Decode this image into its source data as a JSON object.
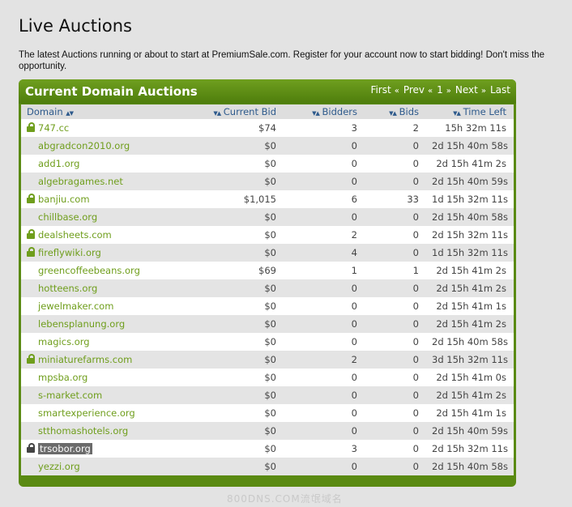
{
  "page": {
    "title": "Live Auctions",
    "intro": "The latest Auctions running or about to start at PremiumSale.com. Register for your account now to start bidding! Don't miss the opportunity."
  },
  "panel": {
    "title": "Current Domain Auctions",
    "pager": {
      "first": "First",
      "prev": "Prev",
      "page": "1",
      "next": "Next",
      "last": "Last",
      "left_sep": "«",
      "right_sep": "»"
    }
  },
  "table": {
    "headers": {
      "domain": "Domain",
      "current_bid": "Current Bid",
      "bidders": "Bidders",
      "bids": "Bids",
      "time_left": "Time Left"
    },
    "rows": [
      {
        "domain": "747.cc",
        "locked": true,
        "bid": "$74",
        "bidders": "3",
        "bids": "2",
        "time": "15h 32m 11s"
      },
      {
        "domain": "abgradcon2010.org",
        "locked": false,
        "bid": "$0",
        "bidders": "0",
        "bids": "0",
        "time": "2d 15h 40m 58s"
      },
      {
        "domain": "add1.org",
        "locked": false,
        "bid": "$0",
        "bidders": "0",
        "bids": "0",
        "time": "2d 15h 41m 2s"
      },
      {
        "domain": "algebragames.net",
        "locked": false,
        "bid": "$0",
        "bidders": "0",
        "bids": "0",
        "time": "2d 15h 40m 59s"
      },
      {
        "domain": "banjiu.com",
        "locked": true,
        "bid": "$1,015",
        "bidders": "6",
        "bids": "33",
        "time": "1d 15h 32m 11s"
      },
      {
        "domain": "chillbase.org",
        "locked": false,
        "bid": "$0",
        "bidders": "0",
        "bids": "0",
        "time": "2d 15h 40m 58s"
      },
      {
        "domain": "dealsheets.com",
        "locked": true,
        "bid": "$0",
        "bidders": "2",
        "bids": "0",
        "time": "2d 15h 32m 11s"
      },
      {
        "domain": "fireflywiki.org",
        "locked": true,
        "bid": "$0",
        "bidders": "4",
        "bids": "0",
        "time": "1d 15h 32m 11s"
      },
      {
        "domain": "greencoffeebeans.org",
        "locked": false,
        "bid": "$69",
        "bidders": "1",
        "bids": "1",
        "time": "2d 15h 41m 2s"
      },
      {
        "domain": "hotteens.org",
        "locked": false,
        "bid": "$0",
        "bidders": "0",
        "bids": "0",
        "time": "2d 15h 41m 2s"
      },
      {
        "domain": "jewelmaker.com",
        "locked": false,
        "bid": "$0",
        "bidders": "0",
        "bids": "0",
        "time": "2d 15h 41m 1s"
      },
      {
        "domain": "lebensplanung.org",
        "locked": false,
        "bid": "$0",
        "bidders": "0",
        "bids": "0",
        "time": "2d 15h 41m 2s"
      },
      {
        "domain": "magics.org",
        "locked": false,
        "bid": "$0",
        "bidders": "0",
        "bids": "0",
        "time": "2d 15h 40m 58s"
      },
      {
        "domain": "miniaturefarms.com",
        "locked": true,
        "bid": "$0",
        "bidders": "2",
        "bids": "0",
        "time": "3d 15h 32m 11s"
      },
      {
        "domain": "mpsba.org",
        "locked": false,
        "bid": "$0",
        "bidders": "0",
        "bids": "0",
        "time": "2d 15h 41m 0s"
      },
      {
        "domain": "s-market.com",
        "locked": false,
        "bid": "$0",
        "bidders": "0",
        "bids": "0",
        "time": "2d 15h 41m 2s"
      },
      {
        "domain": "smartexperience.org",
        "locked": false,
        "bid": "$0",
        "bidders": "0",
        "bids": "0",
        "time": "2d 15h 41m 1s"
      },
      {
        "domain": "stthomashotels.org",
        "locked": false,
        "bid": "$0",
        "bidders": "0",
        "bids": "0",
        "time": "2d 15h 40m 59s"
      },
      {
        "domain": "trsobor.org",
        "locked": true,
        "selected": true,
        "bid": "$0",
        "bidders": "3",
        "bids": "0",
        "time": "2d 15h 32m 11s"
      },
      {
        "domain": "yezzi.org",
        "locked": false,
        "bid": "$0",
        "bidders": "0",
        "bids": "0",
        "time": "2d 15h 40m 58s"
      }
    ]
  },
  "watermark": "800DNS.COM流氓域名",
  "colors": {
    "panel_green": "#5a8a12",
    "link_green": "#6f9e1c",
    "header_blue": "#2e5a8c",
    "row_alt": "#e4e4e4"
  }
}
